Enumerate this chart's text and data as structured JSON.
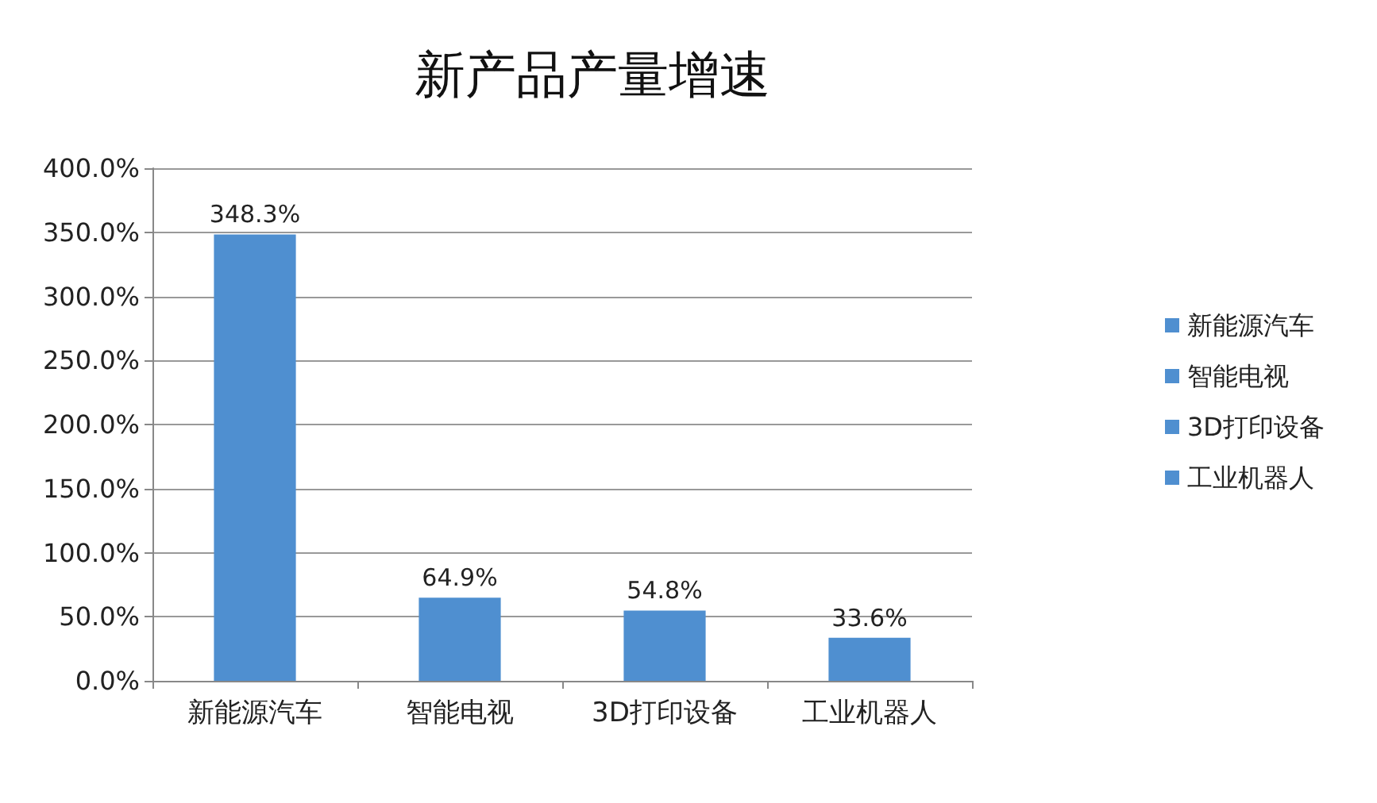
{
  "chart_data": {
    "type": "bar",
    "title": "新产品产量增速",
    "categories": [
      "新能源汽车",
      "智能电视",
      "3D打印设备",
      "工业机器人"
    ],
    "series": [
      {
        "name": "新能源汽车",
        "color": "#4f8fd0",
        "values": [
          348.3,
          null,
          null,
          null
        ],
        "value_labels": [
          "348.3%",
          null,
          null,
          null
        ]
      },
      {
        "name": "智能电视",
        "color": "#4f8fd0",
        "values": [
          null,
          64.9,
          null,
          null
        ],
        "value_labels": [
          null,
          "64.9%",
          null,
          null
        ]
      },
      {
        "name": "3D打印设备",
        "color": "#4f8fd0",
        "values": [
          null,
          null,
          54.8,
          null
        ],
        "value_labels": [
          null,
          null,
          "54.8%",
          null
        ]
      },
      {
        "name": "工业机器人",
        "color": "#4f8fd0",
        "values": [
          null,
          null,
          null,
          33.6
        ],
        "value_labels": [
          null,
          null,
          null,
          "33.6%"
        ]
      }
    ],
    "stacked": true,
    "ylim": [
      0,
      400
    ],
    "yticks": [
      {
        "value": 0,
        "label": "0.0%"
      },
      {
        "value": 50,
        "label": "50.0%"
      },
      {
        "value": 100,
        "label": "100.0%"
      },
      {
        "value": 150,
        "label": "150.0%"
      },
      {
        "value": 200,
        "label": "200.0%"
      },
      {
        "value": 250,
        "label": "250.0%"
      },
      {
        "value": 300,
        "label": "300.0%"
      },
      {
        "value": 350,
        "label": "350.0%"
      },
      {
        "value": 400,
        "label": "400.0%"
      }
    ],
    "grid": "y",
    "legend": "right"
  }
}
